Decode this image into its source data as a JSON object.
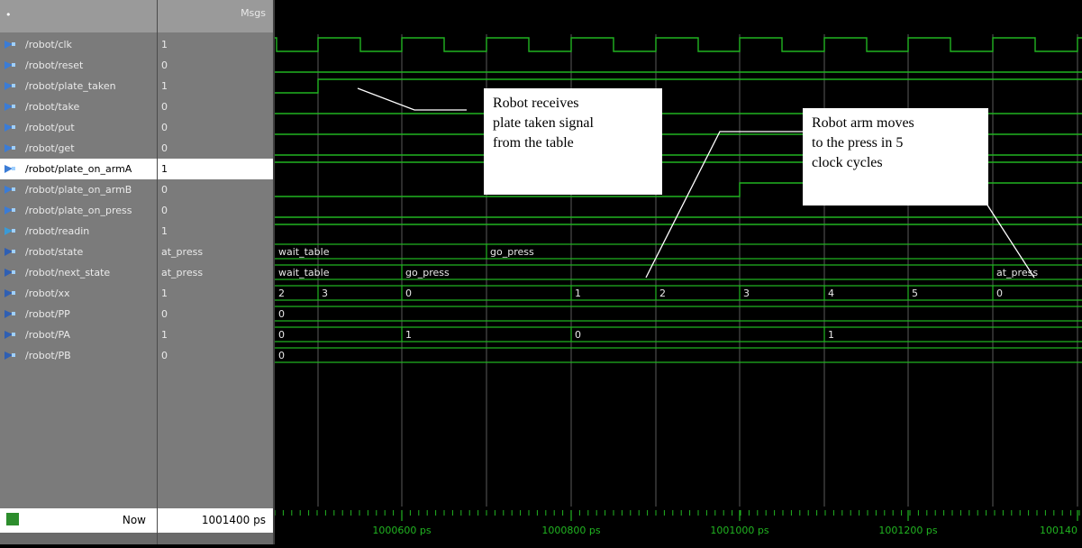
{
  "header": {
    "msgs_label": "Msgs"
  },
  "signals": [
    {
      "name": "/robot/clk",
      "value": "1",
      "icon": "signal-in"
    },
    {
      "name": "/robot/reset",
      "value": "0",
      "icon": "signal-in"
    },
    {
      "name": "/robot/plate_taken",
      "value": "1",
      "icon": "signal-in"
    },
    {
      "name": "/robot/take",
      "value": "0",
      "icon": "signal-out"
    },
    {
      "name": "/robot/put",
      "value": "0",
      "icon": "signal-out"
    },
    {
      "name": "/robot/get",
      "value": "0",
      "icon": "signal-out"
    },
    {
      "name": "/robot/plate_on_armA",
      "value": "1",
      "icon": "signal-out",
      "selected": true
    },
    {
      "name": "/robot/plate_on_armB",
      "value": "0",
      "icon": "signal-out"
    },
    {
      "name": "/robot/plate_on_press",
      "value": "0",
      "icon": "signal-out"
    },
    {
      "name": "/robot/readin",
      "value": "1",
      "icon": "signal-inout"
    },
    {
      "name": "/robot/state",
      "value": "at_press",
      "icon": "signal-internal"
    },
    {
      "name": "/robot/next_state",
      "value": "at_press",
      "icon": "signal-internal"
    },
    {
      "name": "/robot/xx",
      "value": "1",
      "icon": "signal-internal"
    },
    {
      "name": "/robot/PP",
      "value": "0",
      "icon": "signal-internal"
    },
    {
      "name": "/robot/PA",
      "value": "1",
      "icon": "signal-internal"
    },
    {
      "name": "/robot/PB",
      "value": "0",
      "icon": "signal-internal"
    }
  ],
  "bus_labels": {
    "state": [
      "wait_table",
      "go_press"
    ],
    "next_state": [
      "wait_table",
      "go_press",
      "at_press"
    ],
    "xx": [
      "2",
      "3",
      "0",
      "1",
      "2",
      "3",
      "4",
      "5",
      "0"
    ],
    "pp": [
      "0"
    ],
    "pa": [
      "0",
      "1",
      "0",
      "1"
    ],
    "pb": [
      "0"
    ]
  },
  "now": {
    "label": "Now",
    "value": "1001400 ps"
  },
  "timeline": {
    "ticks": [
      "1000600 ps",
      "1000800 ps",
      "1001000 ps",
      "1001200 ps",
      "100140"
    ]
  },
  "annotations": [
    {
      "id": "plate-taken",
      "lines": [
        "Robot receives",
        "plate taken signal",
        "from the table"
      ]
    },
    {
      "id": "arm-moves",
      "lines": [
        "Robot arm moves",
        "to the press in 5",
        "clock cycles"
      ]
    }
  ],
  "colors": {
    "wave": "#21b421",
    "bus": "#21b421",
    "bus_text": "#e8e8e8",
    "grid": "#555555",
    "input_icon": "#3b7cd6",
    "internal_icon": "#2f5fb3"
  }
}
